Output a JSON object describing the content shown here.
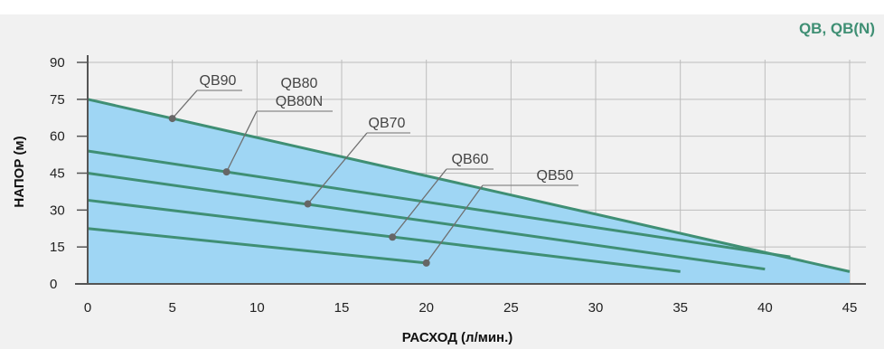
{
  "chart_data": {
    "type": "line",
    "title": "QB, QB(N)",
    "xlabel": "РАСХОД (л/мин.)",
    "ylabel": "НАПОР (м)",
    "xlim": [
      0,
      45
    ],
    "ylim": [
      0,
      90
    ],
    "xticks": [
      0,
      5,
      10,
      15,
      20,
      25,
      30,
      35,
      40,
      45
    ],
    "yticks": [
      0,
      15,
      30,
      45,
      60,
      75,
      90
    ],
    "grid": true,
    "colors": {
      "line": "#3f8f74",
      "area": "#9fd6f4",
      "plot_bg": "#f1f1f1",
      "grid": "#bdbdbd",
      "title": "#3f8f74",
      "marker": "#666666"
    },
    "series": [
      {
        "name": "QB90",
        "x": [
          0,
          45
        ],
        "y": [
          75,
          5
        ]
      },
      {
        "name": "QB80 / QB80N",
        "x": [
          0,
          41.5
        ],
        "y": [
          54,
          11
        ]
      },
      {
        "name": "QB70",
        "x": [
          0,
          40
        ],
        "y": [
          45,
          6
        ]
      },
      {
        "name": "QB60",
        "x": [
          0,
          35
        ],
        "y": [
          34,
          5
        ]
      },
      {
        "name": "QB50",
        "x": [
          0,
          20
        ],
        "y": [
          22.5,
          8.5
        ]
      }
    ],
    "annotations": [
      {
        "series": 0,
        "lines": [
          "QB90"
        ],
        "point": [
          5,
          67.2
        ]
      },
      {
        "series": 1,
        "lines": [
          "QB80",
          "QB80N"
        ],
        "point": [
          8.2,
          45.5
        ]
      },
      {
        "series": 2,
        "lines": [
          "QB70"
        ],
        "point": [
          13,
          32.5
        ]
      },
      {
        "series": 3,
        "lines": [
          "QB60"
        ],
        "point": [
          18,
          19
        ]
      },
      {
        "series": 4,
        "lines": [
          "QB50"
        ],
        "point": [
          20,
          8.5
        ]
      }
    ]
  }
}
